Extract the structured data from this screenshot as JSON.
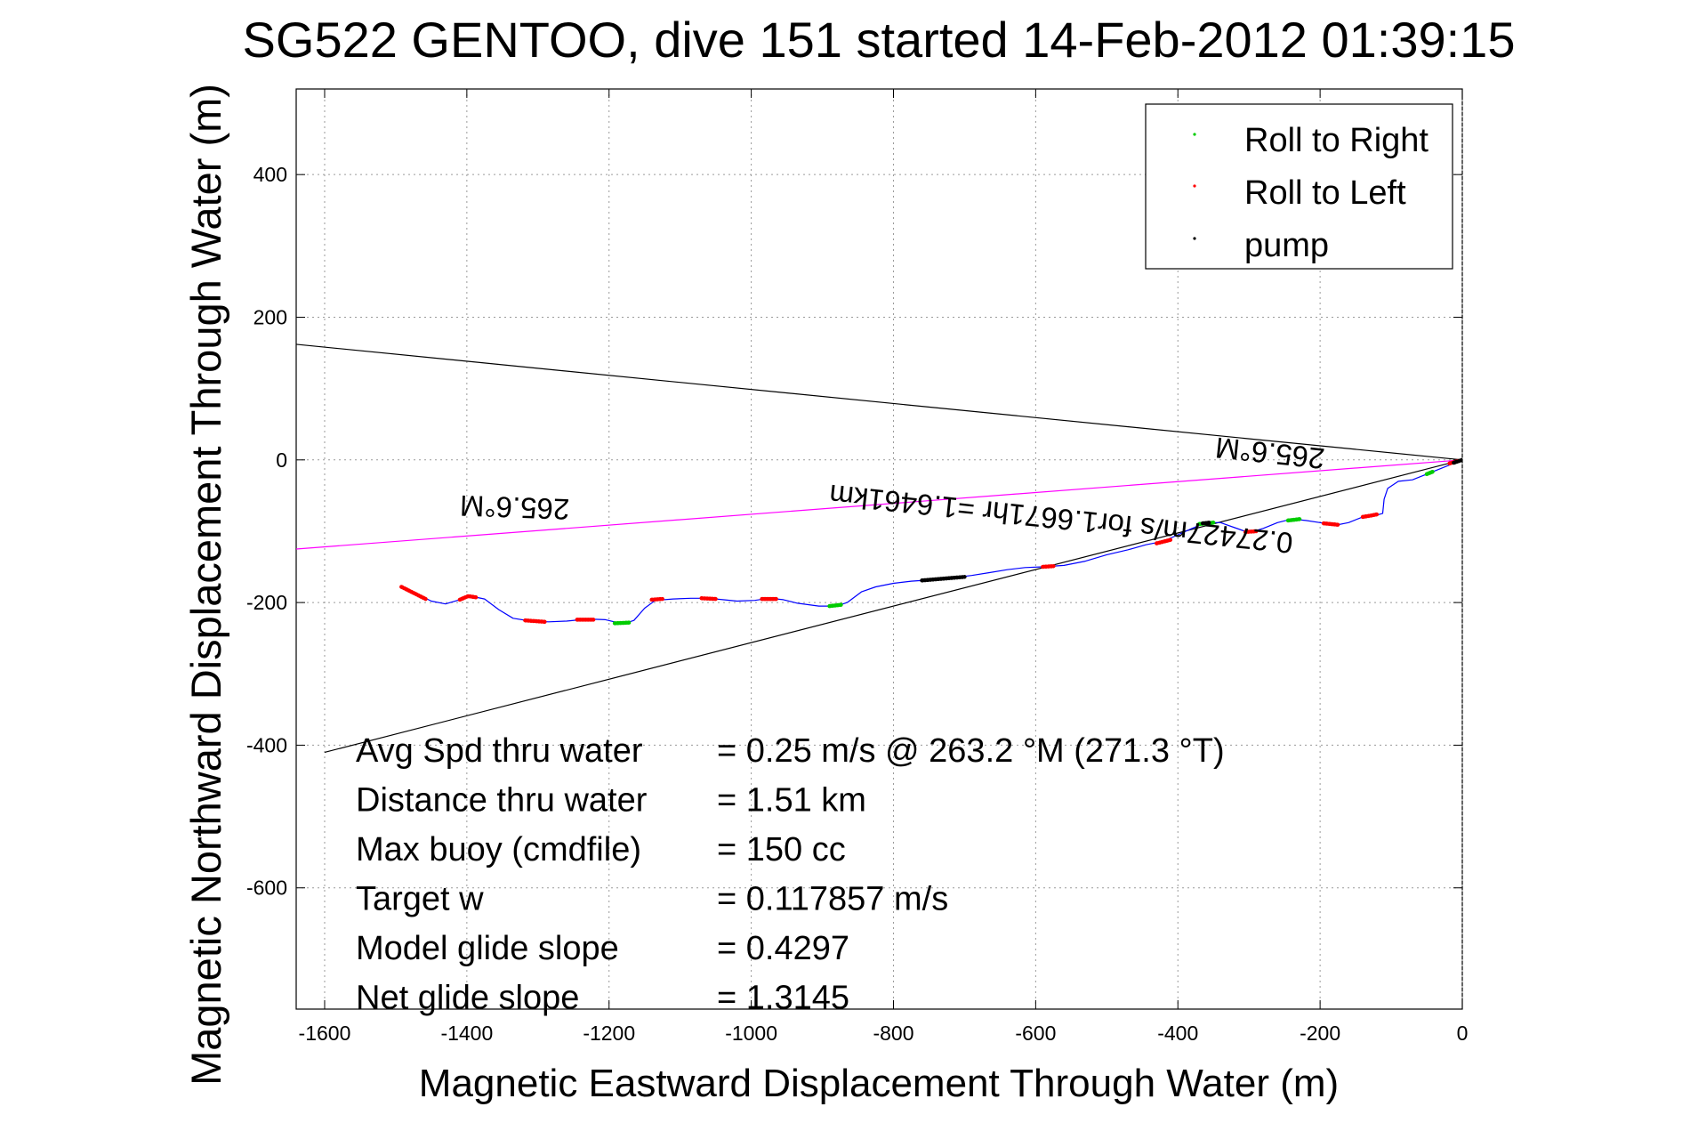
{
  "chart_data": {
    "type": "line",
    "title": "SG522 GENTOO, dive 151 started 14-Feb-2012 01:39:15",
    "xlabel": "Magnetic Eastward Displacement Through Water (m)",
    "ylabel": "Magnetic Northward Displacement Through Water (m)",
    "xlim": [
      -1640,
      0
    ],
    "ylim": [
      -770,
      520
    ],
    "xticks": [
      -1600,
      -1400,
      -1200,
      -1000,
      -800,
      -600,
      -400,
      -200,
      0
    ],
    "yticks": [
      -600,
      -400,
      -200,
      0,
      200,
      400
    ],
    "grid": true,
    "legend_position": "top-right",
    "legend": [
      {
        "label": "Roll to Right",
        "color": "#00cc00"
      },
      {
        "label": "Roll to Left",
        "color": "#ff0000"
      },
      {
        "label": "pump",
        "color": "#000000"
      }
    ],
    "track": {
      "color": "#0000ff",
      "points": [
        [
          -1490,
          -180
        ],
        [
          -1470,
          -188
        ],
        [
          -1450,
          -198
        ],
        [
          -1430,
          -202
        ],
        [
          -1410,
          -196
        ],
        [
          -1395,
          -191
        ],
        [
          -1375,
          -195
        ],
        [
          -1355,
          -210
        ],
        [
          -1335,
          -222
        ],
        [
          -1310,
          -226
        ],
        [
          -1285,
          -227
        ],
        [
          -1260,
          -226
        ],
        [
          -1230,
          -223
        ],
        [
          -1205,
          -224
        ],
        [
          -1180,
          -230
        ],
        [
          -1165,
          -225
        ],
        [
          -1150,
          -208
        ],
        [
          -1135,
          -197
        ],
        [
          -1110,
          -195
        ],
        [
          -1085,
          -194
        ],
        [
          -1060,
          -194
        ],
        [
          -1040,
          -196
        ],
        [
          -1020,
          -198
        ],
        [
          -995,
          -197
        ],
        [
          -975,
          -194
        ],
        [
          -955,
          -196
        ],
        [
          -935,
          -201
        ],
        [
          -905,
          -205
        ],
        [
          -880,
          -205
        ],
        [
          -865,
          -200
        ],
        [
          -845,
          -185
        ],
        [
          -825,
          -178
        ],
        [
          -800,
          -173
        ],
        [
          -775,
          -170
        ],
        [
          -745,
          -168
        ],
        [
          -715,
          -165
        ],
        [
          -690,
          -162
        ],
        [
          -665,
          -158
        ],
        [
          -640,
          -154
        ],
        [
          -615,
          -151
        ],
        [
          -590,
          -150
        ],
        [
          -560,
          -148
        ],
        [
          -530,
          -142
        ],
        [
          -500,
          -133
        ],
        [
          -470,
          -126
        ],
        [
          -445,
          -119
        ],
        [
          -420,
          -114
        ],
        [
          -400,
          -105
        ],
        [
          -380,
          -96
        ],
        [
          -360,
          -88
        ],
        [
          -340,
          -88
        ],
        [
          -320,
          -95
        ],
        [
          -300,
          -102
        ],
        [
          -280,
          -96
        ],
        [
          -260,
          -88
        ],
        [
          -240,
          -83
        ],
        [
          -220,
          -85
        ],
        [
          -200,
          -88
        ],
        [
          -180,
          -92
        ],
        [
          -160,
          -88
        ],
        [
          -140,
          -80
        ],
        [
          -122,
          -78
        ],
        [
          -112,
          -75
        ],
        [
          -110,
          -55
        ],
        [
          -105,
          -40
        ],
        [
          -90,
          -30
        ],
        [
          -70,
          -28
        ],
        [
          -50,
          -20
        ],
        [
          -30,
          -12
        ],
        [
          -15,
          -6
        ],
        [
          0,
          0
        ]
      ]
    },
    "roll_right_segments": [
      [
        [
          -1192,
          -229
        ],
        [
          -1170,
          -228
        ]
      ],
      [
        [
          -890,
          -205
        ],
        [
          -872,
          -203
        ]
      ],
      [
        [
          -370,
          -90
        ],
        [
          -350,
          -88
        ]
      ],
      [
        [
          -245,
          -85
        ],
        [
          -228,
          -83
        ]
      ],
      [
        [
          -50,
          -20
        ],
        [
          -40,
          -16
        ]
      ]
    ],
    "roll_left_segments": [
      [
        [
          -1492,
          -178
        ],
        [
          -1480,
          -184
        ],
        [
          -1468,
          -190
        ],
        [
          -1458,
          -195
        ]
      ],
      [
        [
          -1410,
          -196
        ],
        [
          -1398,
          -191
        ],
        [
          -1385,
          -193
        ]
      ],
      [
        [
          -1318,
          -225
        ],
        [
          -1290,
          -227
        ]
      ],
      [
        [
          -1245,
          -224
        ],
        [
          -1222,
          -224
        ]
      ],
      [
        [
          -1140,
          -196
        ],
        [
          -1125,
          -195
        ]
      ],
      [
        [
          -1070,
          -194
        ],
        [
          -1050,
          -195
        ]
      ],
      [
        [
          -985,
          -195
        ],
        [
          -965,
          -195
        ]
      ],
      [
        [
          -590,
          -150
        ],
        [
          -575,
          -149
        ]
      ],
      [
        [
          -430,
          -117
        ],
        [
          -410,
          -112
        ]
      ],
      [
        [
          -305,
          -101
        ],
        [
          -290,
          -100
        ]
      ],
      [
        [
          -195,
          -89
        ],
        [
          -175,
          -91
        ]
      ],
      [
        [
          -140,
          -80
        ],
        [
          -128,
          -78
        ],
        [
          -118,
          -76
        ]
      ],
      [
        [
          -18,
          -5
        ],
        [
          -4,
          -1
        ]
      ]
    ],
    "pump_segments": [
      [
        [
          -760,
          -169
        ],
        [
          -700,
          -164
        ]
      ],
      [
        [
          -365,
          -89
        ],
        [
          -355,
          -88
        ]
      ],
      [
        [
          -12,
          -4
        ],
        [
          0,
          0
        ]
      ]
    ],
    "reference_lines": [
      {
        "color": "#000000",
        "from": [
          -1640,
          162
        ],
        "to": [
          0,
          0
        ]
      },
      {
        "color": "#000000",
        "from": [
          -1600,
          -410
        ],
        "to": [
          0,
          0
        ]
      },
      {
        "color": "#ff00ff",
        "from": [
          -1640,
          -125
        ],
        "to": [
          0,
          0
        ]
      }
    ],
    "annotations": {
      "heading_label_left": "265.6°M",
      "heading_label_right": "265.6°M",
      "speed_label": "0.27427m/s for1.6671hr =1.6461km"
    },
    "stats": [
      {
        "label": "Avg Spd thru water",
        "value": "=  0.25 m/s @ 263.2 °M (271.3 °T)"
      },
      {
        "label": "Distance thru water",
        "value": "=  1.51 km"
      },
      {
        "label": "Max buoy (cmdfile)",
        "value": "= 150 cc"
      },
      {
        "label": "Target w",
        "value": "= 0.117857 m/s"
      },
      {
        "label": "Model glide slope",
        "value": "= 0.4297"
      },
      {
        "label": "Net glide slope",
        "value": "= 1.3145"
      }
    ]
  }
}
